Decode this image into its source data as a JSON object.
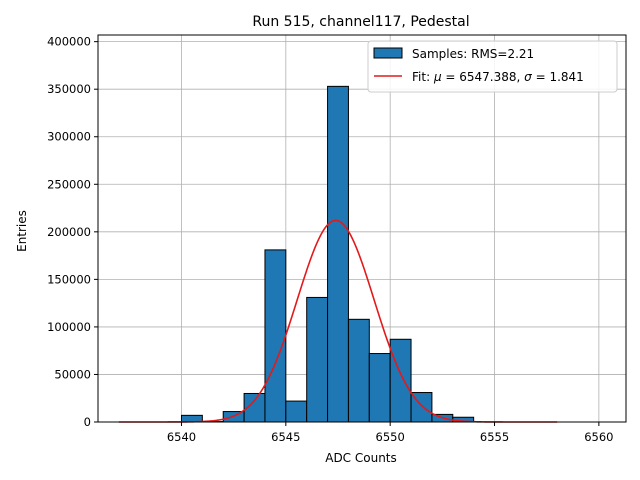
{
  "chart_data": {
    "type": "bar",
    "title": "Run 515, channel117, Pedestal",
    "xlabel": "ADC Counts",
    "ylabel": "Entries",
    "xlim": [
      6536,
      6561.3
    ],
    "ylim": [
      0,
      407000
    ],
    "xticks": [
      6540,
      6545,
      6550,
      6555,
      6560
    ],
    "yticks": [
      0,
      50000,
      100000,
      150000,
      200000,
      250000,
      300000,
      350000,
      400000
    ],
    "grid": true,
    "legend_position": "top-right",
    "histogram": {
      "name": "Samples: RMS=2.21",
      "bin_width": 1,
      "bins": [
        {
          "x": 6540,
          "count": 7000
        },
        {
          "x": 6541,
          "count": 500
        },
        {
          "x": 6542,
          "count": 11000
        },
        {
          "x": 6543,
          "count": 30000
        },
        {
          "x": 6544,
          "count": 181000
        },
        {
          "x": 6545,
          "count": 22000
        },
        {
          "x": 6546,
          "count": 131000
        },
        {
          "x": 6547,
          "count": 353000
        },
        {
          "x": 6548,
          "count": 108000
        },
        {
          "x": 6549,
          "count": 72000
        },
        {
          "x": 6550,
          "count": 87000
        },
        {
          "x": 6551,
          "count": 31000
        },
        {
          "x": 6552,
          "count": 8000
        },
        {
          "x": 6553,
          "count": 5000
        }
      ],
      "color": "#1f77b4",
      "edge_color": "#000000"
    },
    "fit": {
      "name_prefix": "Fit: ",
      "mu_symbol": "μ",
      "sigma_symbol": "σ",
      "mu_text": " = 6547.388, ",
      "sigma_text": " = 1.841",
      "mu": 6547.388,
      "sigma": 1.841,
      "amplitude": 212000,
      "x_range": [
        6537,
        6558
      ],
      "color": "#e31a1c"
    }
  }
}
